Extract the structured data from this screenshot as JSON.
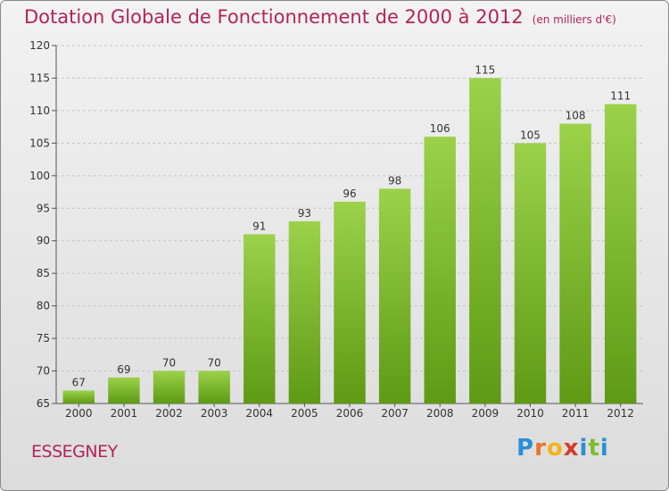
{
  "chart_data": {
    "type": "bar",
    "title": "Dotation Globale de Fonctionnement de 2000 à 2012",
    "subtitle": "(en milliers d'€)",
    "categories": [
      "2000",
      "2001",
      "2002",
      "2003",
      "2004",
      "2005",
      "2006",
      "2007",
      "2008",
      "2009",
      "2010",
      "2011",
      "2012"
    ],
    "values": [
      67,
      69,
      70,
      70,
      91,
      93,
      96,
      98,
      106,
      115,
      105,
      108,
      111
    ],
    "ylim": [
      65,
      120
    ],
    "yticks": [
      65,
      70,
      75,
      80,
      85,
      90,
      95,
      100,
      105,
      110,
      115,
      120
    ],
    "grid": true,
    "bar_color": "#7cbd2e"
  },
  "commune": "ESSEGNEY",
  "logo": {
    "letters": [
      "P",
      "r",
      "o",
      "x",
      "i",
      "t",
      "i"
    ],
    "colors": [
      "#2a8fd6",
      "#e8742a",
      "#f2b21a",
      "#d63a2a",
      "#2a8fd6",
      "#7cbd2e",
      "#2a8fd6"
    ]
  }
}
